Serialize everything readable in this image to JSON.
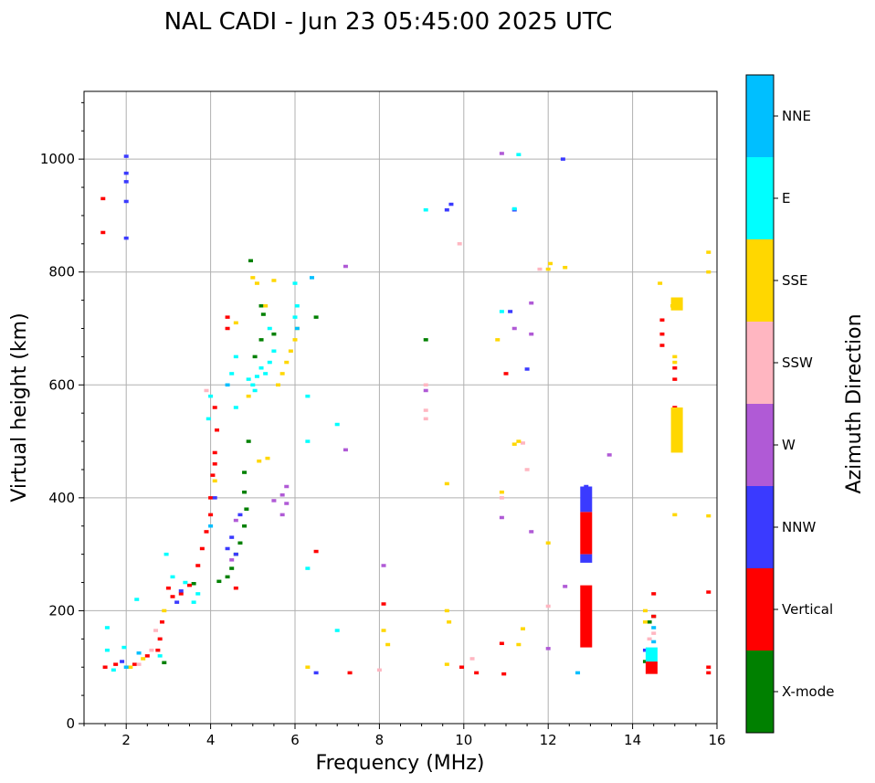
{
  "chart_data": {
    "type": "scatter",
    "title": "NAL CADI - Jun 23 05:45:00 2025 UTC",
    "xlabel": "Frequency (MHz)",
    "ylabel": "Virtual height (km)",
    "xlim": [
      1,
      16
    ],
    "ylim": [
      0,
      1120
    ],
    "xticks": [
      2,
      4,
      6,
      8,
      10,
      12,
      14,
      16
    ],
    "yticks": [
      0,
      200,
      400,
      600,
      800,
      1000
    ],
    "grid": true,
    "colorbar": {
      "title": "Azimuth Direction",
      "categories": [
        {
          "name": "X-mode",
          "color": "#008000"
        },
        {
          "name": "Vertical",
          "color": "#ff0000"
        },
        {
          "name": "NNW",
          "color": "#3a3aff"
        },
        {
          "name": "W",
          "color": "#b05ad6"
        },
        {
          "name": "SSW",
          "color": "#ffb6c1"
        },
        {
          "name": "SSE",
          "color": "#ffd700"
        },
        {
          "name": "E",
          "color": "#00ffff"
        },
        {
          "name": "NNE",
          "color": "#00bfff"
        }
      ]
    },
    "series": [
      {
        "name": "X-mode",
        "points": [
          [
            2.9,
            108
          ],
          [
            3.6,
            248
          ],
          [
            4.2,
            252
          ],
          [
            4.4,
            260
          ],
          [
            4.5,
            275
          ],
          [
            4.6,
            300
          ],
          [
            4.7,
            320
          ],
          [
            4.8,
            350
          ],
          [
            4.85,
            380
          ],
          [
            4.8,
            410
          ],
          [
            4.8,
            445
          ],
          [
            4.9,
            500
          ],
          [
            5.05,
            650
          ],
          [
            5.2,
            680
          ],
          [
            5.25,
            725
          ],
          [
            5.2,
            740
          ],
          [
            5.5,
            690
          ],
          [
            6.5,
            720
          ],
          [
            9.1,
            680
          ],
          [
            4.95,
            820
          ],
          [
            14.3,
            110
          ],
          [
            14.4,
            180
          ],
          [
            14.5,
            190
          ]
        ]
      },
      {
        "name": "Vertical",
        "points": [
          [
            1.5,
            100
          ],
          [
            1.75,
            105
          ],
          [
            2.2,
            105
          ],
          [
            2.5,
            120
          ],
          [
            2.75,
            130
          ],
          [
            2.8,
            150
          ],
          [
            2.85,
            180
          ],
          [
            3.0,
            240
          ],
          [
            3.1,
            225
          ],
          [
            3.3,
            230
          ],
          [
            3.5,
            245
          ],
          [
            3.7,
            280
          ],
          [
            3.8,
            310
          ],
          [
            3.9,
            340
          ],
          [
            4.0,
            370
          ],
          [
            4.0,
            400
          ],
          [
            4.05,
            440
          ],
          [
            4.1,
            460
          ],
          [
            4.1,
            480
          ],
          [
            4.15,
            520
          ],
          [
            4.1,
            560
          ],
          [
            4.4,
            700
          ],
          [
            4.4,
            720
          ],
          [
            4.6,
            240
          ],
          [
            6.5,
            305
          ],
          [
            7.3,
            90
          ],
          [
            8.1,
            212
          ],
          [
            9.95,
            100
          ],
          [
            10.3,
            90
          ],
          [
            10.9,
            142
          ],
          [
            10.95,
            88
          ],
          [
            11.0,
            620
          ],
          [
            1.45,
            870
          ],
          [
            1.45,
            930
          ],
          [
            12.9,
            190
          ],
          [
            12.9,
            240
          ],
          [
            12.9,
            330
          ],
          [
            12.9,
            370
          ],
          [
            14.5,
            100
          ],
          [
            14.5,
            190
          ],
          [
            14.5,
            230
          ],
          [
            14.7,
            670
          ],
          [
            14.7,
            690
          ],
          [
            14.7,
            715
          ],
          [
            15.0,
            560
          ],
          [
            15.0,
            610
          ],
          [
            15.0,
            630
          ],
          [
            15.8,
            100
          ],
          [
            15.8,
            90
          ],
          [
            15.8,
            233
          ]
        ]
      },
      {
        "name": "NNW",
        "points": [
          [
            2.0,
            1005
          ],
          [
            2.0,
            975
          ],
          [
            2.0,
            960
          ],
          [
            2.0,
            925
          ],
          [
            2.0,
            860
          ],
          [
            1.9,
            110
          ],
          [
            3.2,
            215
          ],
          [
            3.3,
            235
          ],
          [
            4.4,
            310
          ],
          [
            4.5,
            330
          ],
          [
            4.6,
            300
          ],
          [
            4.7,
            370
          ],
          [
            4.1,
            400
          ],
          [
            9.7,
            920
          ],
          [
            9.6,
            910
          ],
          [
            11.1,
            730
          ],
          [
            11.2,
            910
          ],
          [
            11.5,
            628
          ],
          [
            12.35,
            1000
          ],
          [
            12.9,
            290
          ],
          [
            12.9,
            390
          ],
          [
            12.9,
            420
          ],
          [
            14.3,
            130
          ],
          [
            6.5,
            90
          ]
        ]
      },
      {
        "name": "W",
        "points": [
          [
            4.5,
            290
          ],
          [
            4.6,
            360
          ],
          [
            5.7,
            370
          ],
          [
            5.8,
            390
          ],
          [
            5.8,
            420
          ],
          [
            5.7,
            405
          ],
          [
            5.5,
            395
          ],
          [
            9.1,
            590
          ],
          [
            10.9,
            365
          ],
          [
            10.9,
            1010
          ],
          [
            11.2,
            700
          ],
          [
            11.6,
            690
          ],
          [
            11.6,
            745
          ],
          [
            11.6,
            340
          ],
          [
            12.0,
            133
          ],
          [
            12.4,
            243
          ],
          [
            13.45,
            476
          ],
          [
            7.2,
            485
          ],
          [
            7.2,
            810
          ],
          [
            8.1,
            280
          ]
        ]
      },
      {
        "name": "SSW",
        "points": [
          [
            2.3,
            105
          ],
          [
            2.6,
            130
          ],
          [
            2.7,
            165
          ],
          [
            3.9,
            590
          ],
          [
            9.1,
            540
          ],
          [
            9.1,
            555
          ],
          [
            9.1,
            600
          ],
          [
            10.2,
            115
          ],
          [
            10.9,
            400
          ],
          [
            11.4,
            497
          ],
          [
            11.5,
            450
          ],
          [
            11.8,
            805
          ],
          [
            12.0,
            208
          ],
          [
            14.4,
            150
          ],
          [
            14.5,
            160
          ],
          [
            8.0,
            95
          ],
          [
            9.9,
            850
          ]
        ]
      },
      {
        "name": "SSE",
        "points": [
          [
            2.1,
            100
          ],
          [
            2.4,
            115
          ],
          [
            2.9,
            200
          ],
          [
            4.1,
            430
          ],
          [
            5.6,
            600
          ],
          [
            5.7,
            620
          ],
          [
            5.8,
            640
          ],
          [
            5.9,
            660
          ],
          [
            6.0,
            680
          ],
          [
            6.05,
            700
          ],
          [
            5.3,
            740
          ],
          [
            5.1,
            780
          ],
          [
            5.0,
            790
          ],
          [
            5.5,
            785
          ],
          [
            4.6,
            710
          ],
          [
            4.9,
            580
          ],
          [
            5.15,
            465
          ],
          [
            5.35,
            470
          ],
          [
            6.3,
            100
          ],
          [
            8.1,
            165
          ],
          [
            8.2,
            140
          ],
          [
            9.6,
            200
          ],
          [
            9.65,
            180
          ],
          [
            9.6,
            105
          ],
          [
            9.6,
            425
          ],
          [
            10.8,
            680
          ],
          [
            10.9,
            410
          ],
          [
            11.2,
            495
          ],
          [
            11.3,
            500
          ],
          [
            11.4,
            168
          ],
          [
            11.3,
            140
          ],
          [
            12.0,
            320
          ],
          [
            12.0,
            805
          ],
          [
            12.05,
            815
          ],
          [
            12.4,
            808
          ],
          [
            14.3,
            200
          ],
          [
            14.3,
            180
          ],
          [
            14.65,
            780
          ],
          [
            14.95,
            740
          ],
          [
            15.0,
            650
          ],
          [
            15.0,
            640
          ],
          [
            15.0,
            520
          ],
          [
            15.0,
            370
          ],
          [
            15.8,
            835
          ],
          [
            15.8,
            800
          ],
          [
            15.8,
            368
          ]
        ]
      },
      {
        "name": "E",
        "points": [
          [
            1.55,
            130
          ],
          [
            1.55,
            170
          ],
          [
            1.7,
            95
          ],
          [
            1.95,
            135
          ],
          [
            2.25,
            220
          ],
          [
            2.8,
            120
          ],
          [
            2.95,
            300
          ],
          [
            3.1,
            260
          ],
          [
            3.4,
            250
          ],
          [
            3.6,
            215
          ],
          [
            3.7,
            230
          ],
          [
            3.95,
            540
          ],
          [
            4.0,
            580
          ],
          [
            4.5,
            620
          ],
          [
            4.6,
            560
          ],
          [
            4.6,
            650
          ],
          [
            5.0,
            600
          ],
          [
            5.05,
            590
          ],
          [
            5.1,
            615
          ],
          [
            5.2,
            630
          ],
          [
            5.3,
            620
          ],
          [
            5.4,
            640
          ],
          [
            5.5,
            660
          ],
          [
            5.4,
            700
          ],
          [
            6.0,
            720
          ],
          [
            6.05,
            740
          ],
          [
            6.0,
            780
          ],
          [
            6.3,
            500
          ],
          [
            6.3,
            580
          ],
          [
            6.3,
            275
          ],
          [
            7.0,
            530
          ],
          [
            7.0,
            165
          ],
          [
            9.1,
            910
          ],
          [
            10.9,
            730
          ],
          [
            11.3,
            1008
          ],
          [
            11.2,
            912
          ],
          [
            14.4,
            120
          ],
          [
            14.5,
            115
          ],
          [
            14.5,
            130
          ],
          [
            4.9,
            610
          ]
        ]
      },
      {
        "name": "NNE",
        "points": [
          [
            2.0,
            100
          ],
          [
            2.3,
            125
          ],
          [
            4.0,
            350
          ],
          [
            4.4,
            600
          ],
          [
            6.05,
            700
          ],
          [
            6.4,
            790
          ],
          [
            12.7,
            90
          ],
          [
            12.9,
            415
          ],
          [
            14.5,
            145
          ],
          [
            14.5,
            170
          ]
        ]
      }
    ],
    "bars": [
      {
        "name": "Vertical",
        "x": 12.9,
        "y0": 135,
        "y1": 245
      },
      {
        "name": "Vertical",
        "x": 12.9,
        "y0": 300,
        "y1": 375
      },
      {
        "name": "NNW",
        "x": 12.9,
        "y0": 285,
        "y1": 300
      },
      {
        "name": "NNW",
        "x": 12.9,
        "y0": 375,
        "y1": 420
      },
      {
        "name": "Vertical",
        "x": 14.45,
        "y0": 88,
        "y1": 110
      },
      {
        "name": "E",
        "x": 14.45,
        "y0": 110,
        "y1": 135
      },
      {
        "name": "SSE",
        "x": 15.05,
        "y0": 480,
        "y1": 560
      },
      {
        "name": "SSE",
        "x": 15.05,
        "y0": 732,
        "y1": 755
      }
    ]
  }
}
